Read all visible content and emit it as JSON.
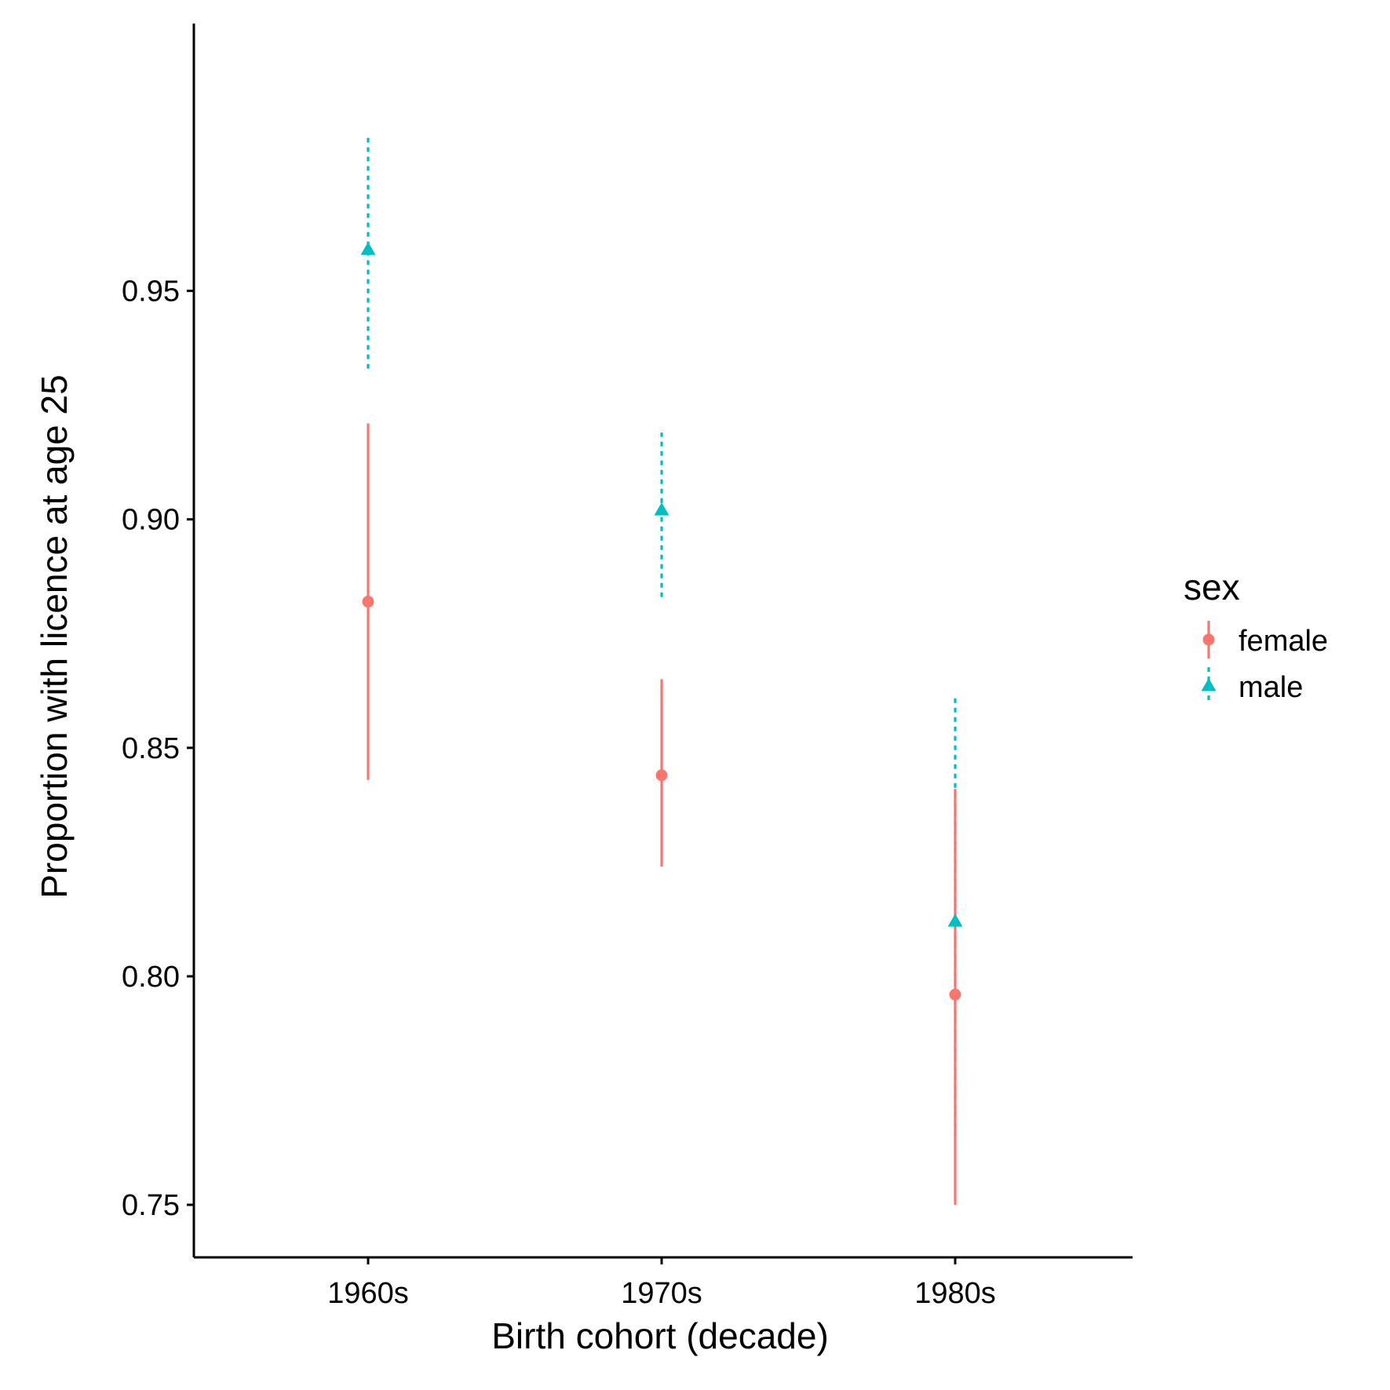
{
  "chart_data": {
    "type": "scatter",
    "subtype": "point-range",
    "xlabel": "Birth cohort (decade)",
    "ylabel": "Proportion with licence at age 25",
    "categories": [
      "1960s",
      "1970s",
      "1980s"
    ],
    "ylim": [
      0.7385,
      1.0085
    ],
    "yticks": [
      0.75,
      0.8,
      0.85,
      0.9,
      0.95
    ],
    "ytick_labels": [
      "0.75",
      "0.80",
      "0.85",
      "0.90",
      "0.95"
    ],
    "grid": false,
    "legend": {
      "title": "sex",
      "position": "right"
    },
    "series": [
      {
        "name": "female",
        "color": "#F8766D",
        "marker": "circle",
        "line_style": "solid",
        "estimates": [
          0.882,
          0.844,
          0.796
        ],
        "lower": [
          0.843,
          0.824,
          0.75
        ],
        "upper": [
          0.921,
          0.865,
          0.841
        ]
      },
      {
        "name": "male",
        "color": "#00BFC4",
        "marker": "triangle",
        "line_style": "dotted",
        "estimates": [
          0.959,
          0.902,
          0.812
        ],
        "lower": [
          0.933,
          0.883,
          0.765
        ],
        "upper": [
          0.984,
          0.919,
          0.861
        ]
      }
    ]
  }
}
